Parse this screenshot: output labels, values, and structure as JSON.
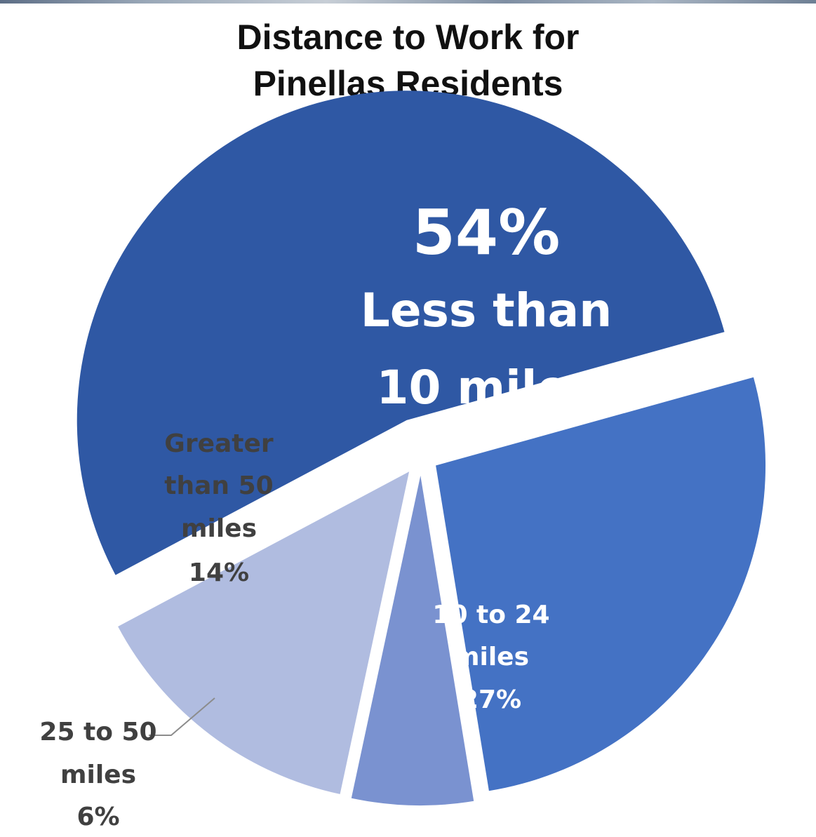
{
  "chart_data": {
    "type": "pie",
    "title": "Distance to Work for Pinellas Residents",
    "title_lines": [
      "Distance to Work for",
      "Pinellas Residents"
    ],
    "legend": "none",
    "slices": [
      {
        "name": "Less than 10 miles",
        "value": 54,
        "value_label": "54%",
        "label_lines": [
          "Less than",
          "10 miles"
        ],
        "color": "#2f58a4"
      },
      {
        "name": "10 to 24 miles",
        "value": 27,
        "value_label": "27%",
        "label_lines": [
          "10 to 24",
          "miles"
        ],
        "color": "#4472c4"
      },
      {
        "name": "25 to 50 miles",
        "value": 6,
        "value_label": "6%",
        "label_lines": [
          "25 to 50",
          "miles"
        ],
        "color": "#7a92d0"
      },
      {
        "name": "Greater than 50 miles",
        "value": 14,
        "value_label": "14%",
        "label_lines": [
          "Greater",
          "than 50",
          "miles"
        ],
        "color": "#b0bce0"
      }
    ]
  }
}
